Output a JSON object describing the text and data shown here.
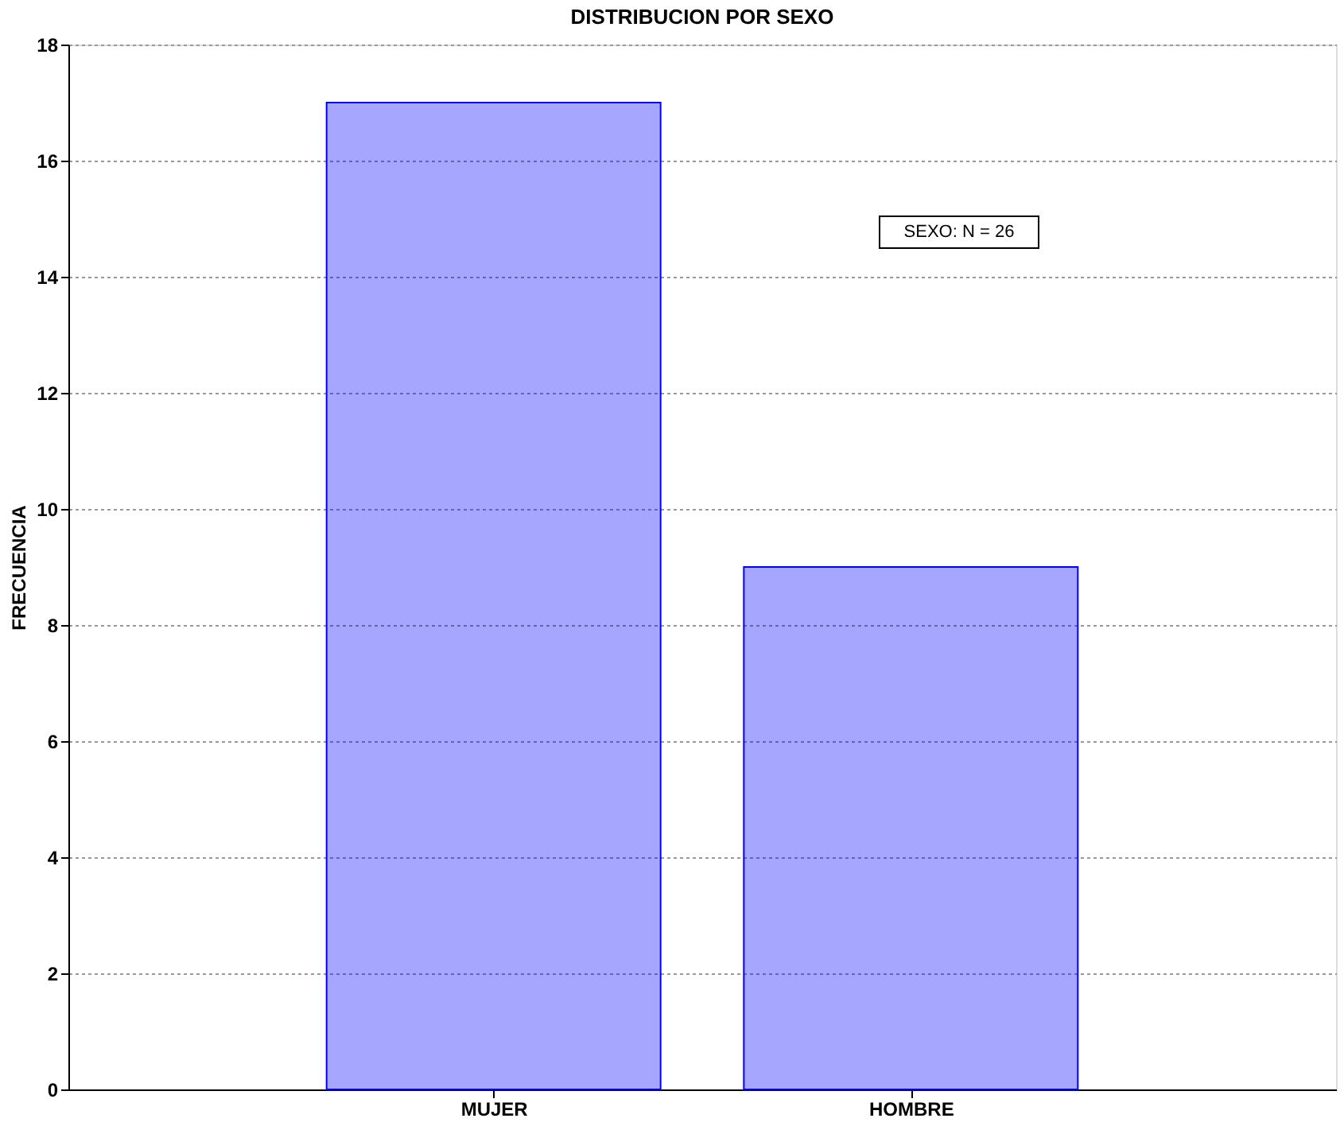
{
  "chart_data": {
    "type": "bar",
    "title": "DISTRIBUCION POR SEXO",
    "ylabel": "FRECUENCIA",
    "categories": [
      "MUJER",
      "HOMBRE"
    ],
    "values": [
      17,
      9
    ],
    "color": "#0000ff",
    "ylim": [
      0,
      18
    ],
    "yticks": [
      0,
      2,
      4,
      6,
      8,
      10,
      12,
      14,
      16,
      18
    ],
    "grid": "y",
    "annotations": [
      "SEXO:  N = 26"
    ]
  }
}
